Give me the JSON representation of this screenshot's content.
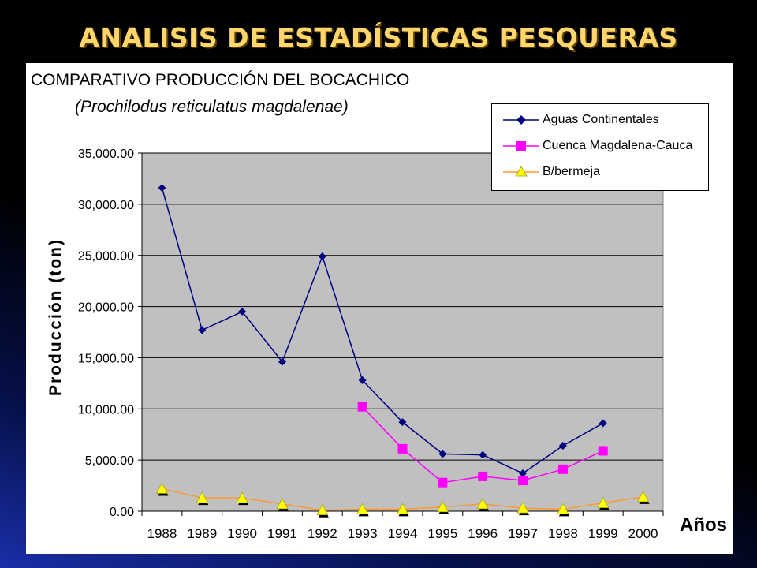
{
  "slide": {
    "title": "ANALISIS DE ESTADÍSTICAS PESQUERAS"
  },
  "colors": {
    "title": "#ffd66b",
    "plot_area": "#c0c0c0",
    "aguas": "#000080",
    "cuenca_line": "#ff00ff",
    "cuenca_marker": "#ff00ff",
    "bermeja_line": "#ff9933",
    "bermeja_marker": "#ffff00"
  },
  "chart_data": {
    "type": "line",
    "title": "COMPARATIVO PRODUCCIÓN DEL BOCACHICO",
    "subtitle": "(Prochilodus reticulatus magdalenae)",
    "xlabel": "Años",
    "ylabel": "Producción (ton)",
    "ylim": [
      0,
      35000
    ],
    "yticks": [
      "0.00",
      "5,000.00",
      "10,000.00",
      "15,000.00",
      "20,000.00",
      "25,000.00",
      "30,000.00",
      "35,000.00"
    ],
    "grid": true,
    "legend_position": "top-right",
    "categories": [
      "1988",
      "1989",
      "1990",
      "1991",
      "1992",
      "1993",
      "1994",
      "1995",
      "1996",
      "1997",
      "1998",
      "1999",
      "2000"
    ],
    "series": [
      {
        "name": "Aguas Continentales",
        "color": "#000080",
        "marker": "diamond",
        "values": [
          31600,
          17700,
          19500,
          14600,
          24900,
          12800,
          8700,
          5600,
          5500,
          3700,
          6400,
          8600,
          null
        ]
      },
      {
        "name": "Cuenca Magdalena-Cauca",
        "color": "#ff00ff",
        "marker": "square",
        "values": [
          null,
          null,
          null,
          null,
          null,
          10200,
          6100,
          2800,
          3400,
          3000,
          4100,
          5900,
          null
        ]
      },
      {
        "name": "B/bermeja",
        "color": "#ff9933",
        "marker": "triangle",
        "values": [
          2200,
          1300,
          1300,
          700,
          100,
          200,
          200,
          400,
          700,
          300,
          200,
          800,
          1400
        ]
      }
    ]
  }
}
